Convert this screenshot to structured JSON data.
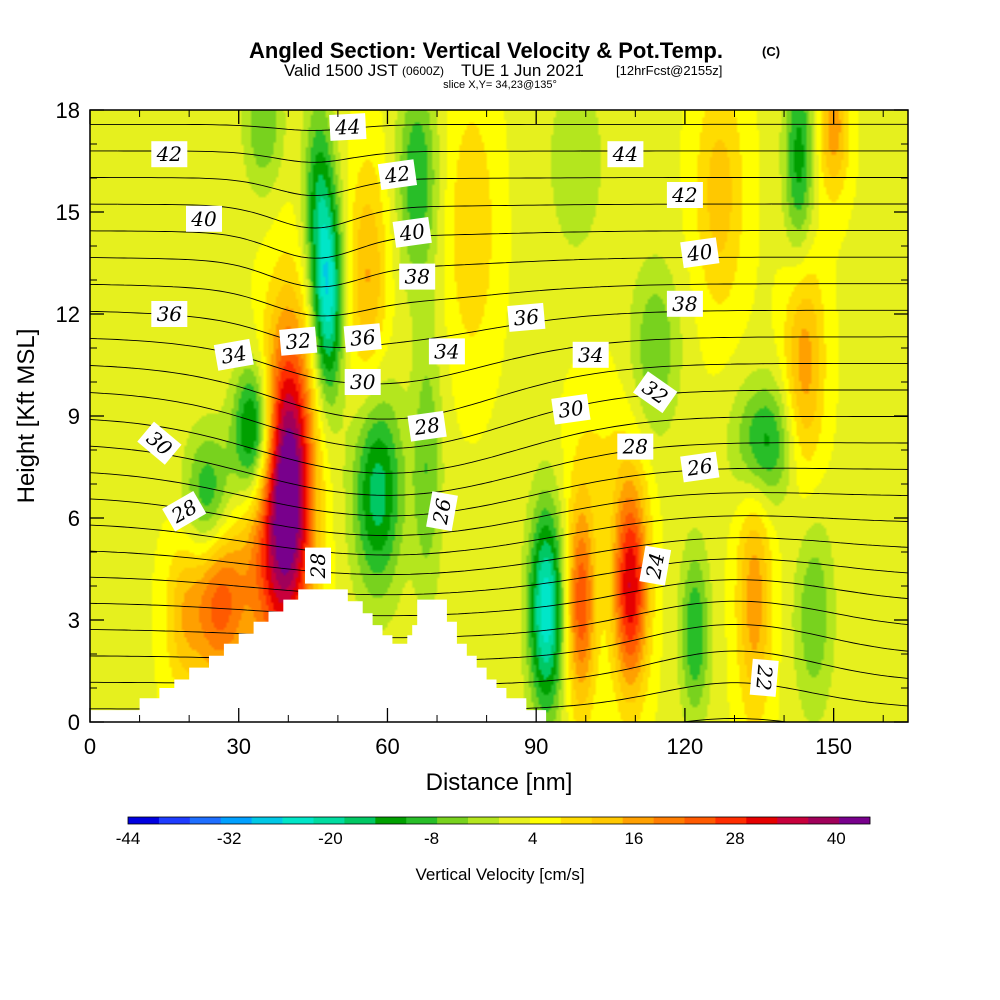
{
  "chart_data": {
    "type": "heatmap",
    "title": "Angled Section: Vertical Velocity & Pot.Temp.",
    "title_units": "(C)",
    "subtitle_valid": "Valid 1500 JST",
    "subtitle_zulu": "(0600Z)",
    "subtitle_date": "TUE 1 Jun 2021",
    "subtitle_fcst": "[12hrFcst@2155z]",
    "slice_label": "slice X,Y= 34,23@135°",
    "xlabel": "Distance [nm]",
    "ylabel": "Height [Kft MSL]",
    "xlim": [
      0,
      165
    ],
    "ylim": [
      0,
      18
    ],
    "x_ticks": [
      0,
      30,
      60,
      90,
      120,
      150
    ],
    "x_tick_labels": [
      "0",
      "30",
      "60",
      "90",
      "120",
      "150"
    ],
    "y_ticks": [
      0,
      3,
      6,
      9,
      12,
      15,
      18
    ],
    "y_tick_labels": [
      "0",
      "3",
      "6",
      "9",
      "12",
      "15",
      "18"
    ],
    "colorbar": {
      "label": "Vertical Velocity [cm/s]",
      "min": -44,
      "max": 44,
      "tick_values": [
        -44,
        -32,
        -20,
        -8,
        4,
        16,
        28,
        40
      ],
      "tick_labels": [
        "-44",
        "-32",
        "-20",
        "-8",
        "4",
        "16",
        "28",
        "40"
      ],
      "colors": [
        "#0000e0",
        "#1e3cff",
        "#1e6eff",
        "#00a0ff",
        "#00c8e6",
        "#00e6c8",
        "#00dca0",
        "#00c864",
        "#00a000",
        "#28be28",
        "#78d21e",
        "#b4e61e",
        "#e6f01e",
        "#ffff00",
        "#ffdc00",
        "#ffc800",
        "#ffa000",
        "#ff7d00",
        "#ff5a00",
        "#ff2d00",
        "#e60000",
        "#c8003c",
        "#a0005a",
        "#78008c"
      ]
    },
    "terrain": [
      [
        0,
        0.35
      ],
      [
        10,
        0.35
      ],
      [
        10,
        0.7
      ],
      [
        14,
        0.7
      ],
      [
        14,
        1.0
      ],
      [
        17,
        1.0
      ],
      [
        17,
        1.25
      ],
      [
        20,
        1.25
      ],
      [
        20,
        1.6
      ],
      [
        24,
        1.6
      ],
      [
        24,
        1.95
      ],
      [
        27,
        1.95
      ],
      [
        27,
        2.3
      ],
      [
        30,
        2.3
      ],
      [
        30,
        2.6
      ],
      [
        33,
        2.6
      ],
      [
        33,
        2.95
      ],
      [
        36,
        2.95
      ],
      [
        36,
        3.25
      ],
      [
        39,
        3.25
      ],
      [
        39,
        3.6
      ],
      [
        42,
        3.6
      ],
      [
        42,
        3.9
      ],
      [
        52,
        3.9
      ],
      [
        52,
        3.55
      ],
      [
        55,
        3.55
      ],
      [
        55,
        3.2
      ],
      [
        57,
        3.2
      ],
      [
        57,
        2.85
      ],
      [
        59,
        2.85
      ],
      [
        59,
        2.55
      ],
      [
        61,
        2.55
      ],
      [
        61,
        2.3
      ],
      [
        64,
        2.3
      ],
      [
        64,
        2.55
      ],
      [
        65,
        2.55
      ],
      [
        65,
        2.85
      ],
      [
        66,
        2.85
      ],
      [
        66,
        3.6
      ],
      [
        72,
        3.6
      ],
      [
        72,
        2.95
      ],
      [
        74,
        2.95
      ],
      [
        74,
        2.3
      ],
      [
        76,
        2.3
      ],
      [
        76,
        1.95
      ],
      [
        78,
        1.95
      ],
      [
        78,
        1.6
      ],
      [
        80,
        1.6
      ],
      [
        80,
        1.25
      ],
      [
        82,
        1.25
      ],
      [
        82,
        1.0
      ],
      [
        84,
        1.0
      ],
      [
        84,
        0.7
      ],
      [
        88,
        0.7
      ],
      [
        88,
        0.35
      ],
      [
        92,
        0.35
      ],
      [
        92,
        0
      ],
      [
        165,
        0
      ],
      [
        165,
        0
      ],
      [
        0,
        0
      ]
    ],
    "velocity_cells": [
      {
        "x": 40,
        "y": 7.2,
        "sx": 5,
        "sy": 4.5,
        "w": 40
      },
      {
        "x": 36,
        "y": 4.5,
        "sx": 7,
        "sy": 3.5,
        "w": 14
      },
      {
        "x": 26,
        "y": 3.6,
        "sx": 5,
        "sy": 2.5,
        "w": 20
      },
      {
        "x": 19,
        "y": 3.2,
        "sx": 4,
        "sy": 2.5,
        "w": 10
      },
      {
        "x": 33,
        "y": 8.5,
        "sx": 4,
        "sy": 2.0,
        "w": -24
      },
      {
        "x": 24,
        "y": 6.5,
        "sx": 5,
        "sy": 2.0,
        "w": -16
      },
      {
        "x": 48,
        "y": 12.5,
        "sx": 3,
        "sy": 3.0,
        "w": -26
      },
      {
        "x": 46,
        "y": 15.5,
        "sx": 3,
        "sy": 3.0,
        "w": -14
      },
      {
        "x": 58,
        "y": 6.8,
        "sx": 5,
        "sy": 3.0,
        "w": -20
      },
      {
        "x": 68,
        "y": 7.5,
        "sx": 3,
        "sy": 4.0,
        "w": -10
      },
      {
        "x": 66,
        "y": 16.0,
        "sx": 4,
        "sy": 3.0,
        "w": -14
      },
      {
        "x": 56,
        "y": 13.0,
        "sx": 4,
        "sy": 3.5,
        "w": 12
      },
      {
        "x": 77,
        "y": 14.5,
        "sx": 5,
        "sy": 4.0,
        "w": 8
      },
      {
        "x": 92,
        "y": 3.3,
        "sx": 3.5,
        "sy": 3.0,
        "w": -28
      },
      {
        "x": 99,
        "y": 3.5,
        "sx": 3,
        "sy": 3.0,
        "w": 22
      },
      {
        "x": 109,
        "y": 4.0,
        "sx": 3.5,
        "sy": 3.0,
        "w": 30
      },
      {
        "x": 103,
        "y": 8.0,
        "sx": 7,
        "sy": 2.5,
        "w": 4
      },
      {
        "x": 122,
        "y": 2.6,
        "sx": 3,
        "sy": 2.5,
        "w": -14
      },
      {
        "x": 134,
        "y": 3.6,
        "sx": 3.5,
        "sy": 3.5,
        "w": 14
      },
      {
        "x": 146,
        "y": 3.2,
        "sx": 4,
        "sy": 3.0,
        "w": -10
      },
      {
        "x": 136,
        "y": 8.2,
        "sx": 6,
        "sy": 1.8,
        "w": -16
      },
      {
        "x": 114,
        "y": 11.0,
        "sx": 5,
        "sy": 2.5,
        "w": -10
      },
      {
        "x": 144,
        "y": 10.5,
        "sx": 4,
        "sy": 3.5,
        "w": 14
      },
      {
        "x": 143,
        "y": 16.5,
        "sx": 3,
        "sy": 3.0,
        "w": -16
      },
      {
        "x": 127,
        "y": 15.5,
        "sx": 5,
        "sy": 3.5,
        "w": 10
      },
      {
        "x": 98,
        "y": 16.5,
        "sx": 6,
        "sy": 3.0,
        "w": -6
      },
      {
        "x": 35,
        "y": 17.5,
        "sx": 4,
        "sy": 2.0,
        "w": -10
      },
      {
        "x": 150,
        "y": 17.5,
        "sx": 3,
        "sy": 2.0,
        "w": 14
      }
    ],
    "pot_temp_levels": [
      21,
      22,
      23,
      24,
      25,
      26,
      27,
      28,
      29,
      30,
      31,
      32,
      33,
      34,
      35,
      36,
      37,
      38,
      39,
      40,
      41,
      42,
      43,
      44,
      45,
      46
    ],
    "contour_labels": [
      {
        "text": "44",
        "x": 52,
        "y": 17.5,
        "angle": -3
      },
      {
        "text": "42",
        "x": 16,
        "y": 16.7,
        "angle": 0
      },
      {
        "text": "42",
        "x": 62,
        "y": 16.1,
        "angle": -8
      },
      {
        "text": "44",
        "x": 108,
        "y": 16.7,
        "angle": 0
      },
      {
        "text": "42",
        "x": 120,
        "y": 15.5,
        "angle": 0
      },
      {
        "text": "40",
        "x": 23,
        "y": 14.8,
        "angle": 0
      },
      {
        "text": "40",
        "x": 65,
        "y": 14.4,
        "angle": -8
      },
      {
        "text": "40",
        "x": 123,
        "y": 13.8,
        "angle": -8
      },
      {
        "text": "38",
        "x": 66,
        "y": 13.1,
        "angle": 0
      },
      {
        "text": "38",
        "x": 120,
        "y": 12.3,
        "angle": 0
      },
      {
        "text": "36",
        "x": 16,
        "y": 12.0,
        "angle": 0
      },
      {
        "text": "36",
        "x": 88,
        "y": 11.9,
        "angle": -5
      },
      {
        "text": "36",
        "x": 55,
        "y": 11.3,
        "angle": -5
      },
      {
        "text": "32",
        "x": 42,
        "y": 11.2,
        "angle": -5
      },
      {
        "text": "34",
        "x": 72,
        "y": 10.9,
        "angle": 0
      },
      {
        "text": "34",
        "x": 101,
        "y": 10.8,
        "angle": 0
      },
      {
        "text": "34",
        "x": 29,
        "y": 10.8,
        "angle": -10
      },
      {
        "text": "32",
        "x": 114,
        "y": 9.7,
        "angle": 35
      },
      {
        "text": "30",
        "x": 55,
        "y": 10.0,
        "angle": 0
      },
      {
        "text": "30",
        "x": 97,
        "y": 9.2,
        "angle": -8
      },
      {
        "text": "28",
        "x": 68,
        "y": 8.7,
        "angle": -8
      },
      {
        "text": "28",
        "x": 110,
        "y": 8.1,
        "angle": 0
      },
      {
        "text": "26",
        "x": 123,
        "y": 7.5,
        "angle": -8
      },
      {
        "text": "30",
        "x": 14,
        "y": 8.2,
        "angle": 40
      },
      {
        "text": "28",
        "x": 19,
        "y": 6.2,
        "angle": -30
      },
      {
        "text": "26",
        "x": 71,
        "y": 6.2,
        "angle": -80
      },
      {
        "text": "28",
        "x": 46,
        "y": 4.6,
        "angle": -90
      },
      {
        "text": "24",
        "x": 114,
        "y": 4.6,
        "angle": -80
      },
      {
        "text": "22",
        "x": 136,
        "y": 1.3,
        "angle": 95
      }
    ]
  }
}
